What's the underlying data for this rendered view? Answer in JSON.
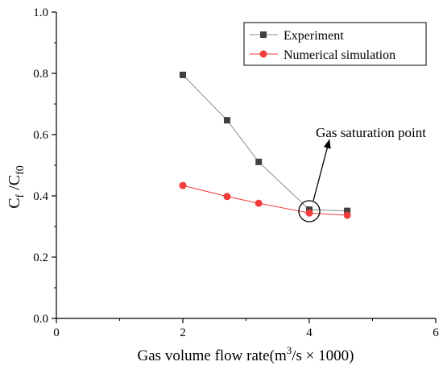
{
  "chart_data": {
    "type": "line",
    "xlabel": "Gas volume flow rate(m³/s × 1000)",
    "xlabel_parts": {
      "prefix": "Gas volume flow rate(m",
      "sup": "3",
      "suffix": "/s × 1000)"
    },
    "ylabel": "Cf /Cf0",
    "ylabel_parts": {
      "base1": "C",
      "sub1": "f",
      "mid": " /C",
      "sub2": "f0"
    },
    "xlim": [
      0,
      6
    ],
    "ylim": [
      0.0,
      1.0
    ],
    "xticks": [
      0,
      2,
      4,
      6
    ],
    "yticks": [
      0.0,
      0.2,
      0.4,
      0.6,
      0.8,
      1.0
    ],
    "xtick_labels": [
      "0",
      "2",
      "4",
      "6"
    ],
    "ytick_labels": [
      "0.0",
      "0.2",
      "0.4",
      "0.6",
      "0.8",
      "1.0"
    ],
    "grid": false,
    "legend_position": "top-right",
    "series": [
      {
        "name": "Experiment",
        "marker": "square",
        "color": "#404040",
        "line_color": "#8c8c8c",
        "x": [
          2.0,
          2.7,
          3.2,
          4.0,
          4.6
        ],
        "y": [
          0.795,
          0.647,
          0.511,
          0.355,
          0.351
        ]
      },
      {
        "name": "Numerical simulation",
        "marker": "circle",
        "color": "#f23b3b",
        "line_color": "#f23b3b",
        "x": [
          2.0,
          2.7,
          3.2,
          4.0,
          4.6
        ],
        "y": [
          0.434,
          0.398,
          0.376,
          0.344,
          0.337
        ]
      }
    ],
    "annotation": {
      "text": "Gas saturation point",
      "target": [
        4.0,
        0.35
      ],
      "text_anchor_data": [
        4.6,
        0.59
      ]
    }
  }
}
